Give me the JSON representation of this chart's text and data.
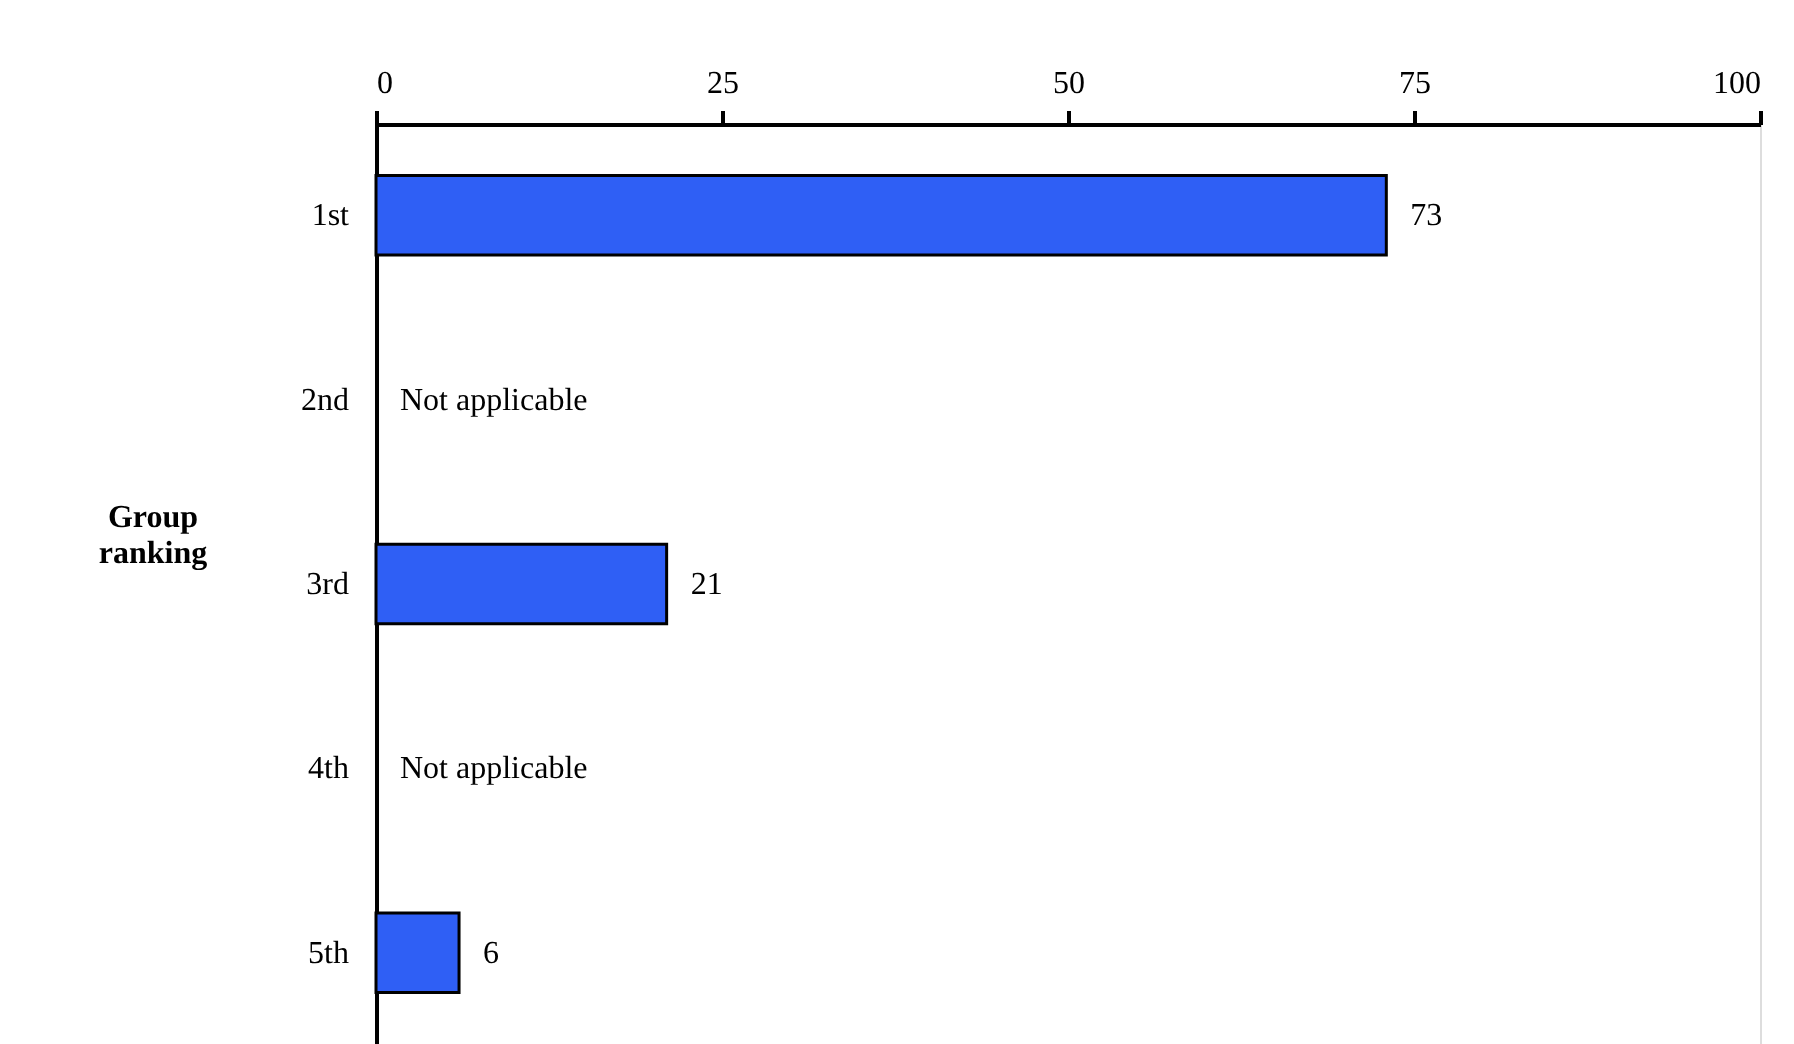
{
  "chart_data": {
    "type": "bar",
    "orientation": "horizontal",
    "ylabel": "Group ranking",
    "categories": [
      "1st",
      "2nd",
      "3rd",
      "4th",
      "5th"
    ],
    "values": [
      73,
      null,
      21,
      null,
      6
    ],
    "value_labels": [
      "73",
      "Not applicable",
      "21",
      "Not applicable",
      "6"
    ],
    "color": "#2f5ff5",
    "xlim": [
      0,
      100
    ],
    "xticks": [
      0,
      25,
      50,
      75,
      100
    ],
    "grid": false
  }
}
